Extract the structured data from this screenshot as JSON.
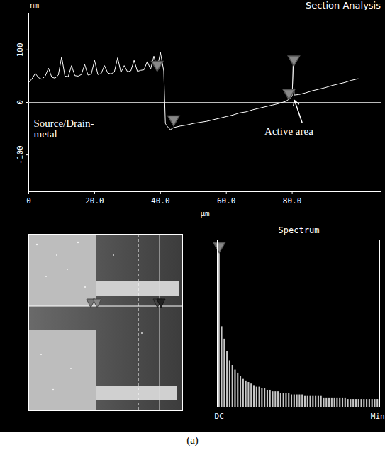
{
  "caption": "(a)",
  "chart_data": [
    {
      "type": "line",
      "title": "Section Analysis",
      "x_label": "µm",
      "y_label": "nm",
      "x": [
        0,
        1,
        2,
        3,
        4,
        5,
        6,
        7,
        8,
        9,
        10,
        11,
        12,
        13,
        14,
        15,
        16,
        17,
        18,
        19,
        20,
        21,
        22,
        23,
        24,
        25,
        26,
        27,
        28,
        29,
        30,
        31,
        32,
        33,
        34,
        35,
        36,
        37,
        38,
        39,
        40,
        41,
        41.5,
        42,
        43,
        44,
        46,
        48,
        50,
        52,
        54,
        56,
        58,
        60,
        62,
        64,
        66,
        68,
        70,
        72,
        74,
        76,
        78,
        79,
        80,
        80.3,
        80.6,
        82,
        84,
        86,
        88,
        90,
        92,
        94,
        96,
        98,
        100
      ],
      "values": [
        38,
        45,
        55,
        47,
        44,
        50,
        65,
        48,
        46,
        52,
        87,
        50,
        49,
        70,
        51,
        50,
        53,
        72,
        52,
        54,
        80,
        53,
        55,
        70,
        56,
        54,
        58,
        85,
        57,
        70,
        58,
        60,
        80,
        59,
        61,
        62,
        78,
        63,
        88,
        65,
        95,
        60,
        -40,
        -45,
        -52,
        -48,
        -45,
        -43,
        -40,
        -38,
        -36,
        -33,
        -30,
        -27,
        -24,
        -20,
        -18,
        -14,
        -11,
        -8,
        -5,
        -2,
        2,
        6,
        12,
        75,
        14,
        15,
        18,
        22,
        25,
        28,
        32,
        35,
        38,
        42,
        45
      ],
      "color": "#ffffff",
      "xlim": [
        0,
        107
      ],
      "xticks": [
        0,
        {
          "value": 20,
          "label": "20.0"
        },
        {
          "value": 40,
          "label": "40.0"
        },
        {
          "value": 60,
          "label": "60.0"
        },
        {
          "value": 80,
          "label": "80.0"
        }
      ],
      "ylim": [
        -170,
        170
      ],
      "yticks": [
        -100,
        0,
        100
      ],
      "cursors": {
        "x": [
          39,
          44,
          79,
          80.5
        ],
        "y": [
          72,
          -32,
          18,
          82
        ]
      },
      "annotations": [
        {
          "text": "Source/Drain-metal",
          "x": 1.5,
          "y": -50
        },
        {
          "text": "Active area",
          "x": 79,
          "y": -55,
          "arrow_from": [
            83,
            -38
          ],
          "arrow_to": [
            80.7,
            4
          ]
        }
      ]
    },
    {
      "type": "bar",
      "title": "Spectrum",
      "categories": [
        "DC",
        null,
        null,
        null,
        null,
        null,
        null,
        null,
        null,
        null,
        null,
        null,
        null,
        null,
        null,
        null,
        null,
        null,
        null,
        null,
        null,
        null,
        null,
        null,
        null,
        null,
        null,
        null,
        null,
        null,
        null,
        null,
        null,
        null,
        null,
        null,
        null,
        null,
        null,
        null,
        null,
        null,
        null,
        null,
        null,
        null,
        null,
        null,
        null,
        null,
        null,
        null,
        null,
        null,
        null,
        null,
        null,
        null,
        null,
        "Min"
      ],
      "values": [
        100,
        52,
        44,
        36,
        30,
        27,
        24,
        22,
        20,
        18,
        17,
        16,
        15,
        14,
        13,
        13,
        12,
        12,
        11,
        11,
        10,
        10,
        10,
        9,
        9,
        9,
        9,
        8,
        8,
        8,
        8,
        8,
        7,
        7,
        7,
        7,
        7,
        7,
        7,
        6,
        6,
        6,
        6,
        6,
        6,
        6,
        6,
        6,
        5,
        5,
        5,
        5,
        5,
        5,
        5,
        5,
        5,
        5,
        5,
        5
      ],
      "color": "#c8c8c8",
      "ylim": [
        0,
        108
      ],
      "yticks": [],
      "tick_labels": "x",
      "cursors": {
        "x": [
          0
        ],
        "y": [
          104
        ]
      }
    }
  ]
}
